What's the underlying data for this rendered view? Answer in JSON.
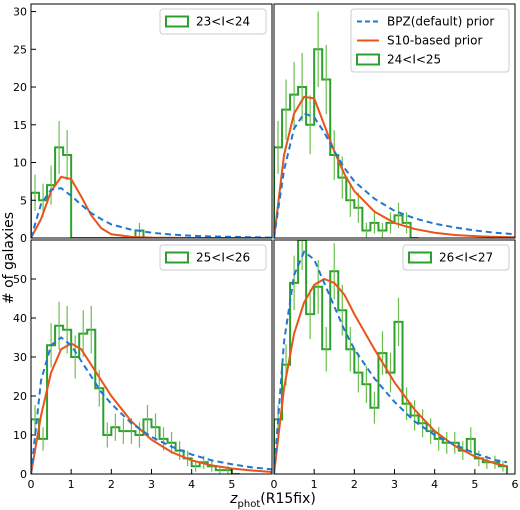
{
  "colors": {
    "bpz": "#1f77d4",
    "s10": "#e8541a",
    "hist": "#2ca02c",
    "axis": "#000000"
  },
  "figure": {
    "ylabel": "# of galaxies",
    "xlabel_main": "z",
    "xlabel_sub": "phot",
    "xlabel_suffix": "(R15fix)"
  },
  "chart_data": [
    {
      "type": "line",
      "panel": "top-left",
      "xlim": [
        0,
        6
      ],
      "ylim": [
        0,
        31
      ],
      "xticks": [],
      "yticks": [
        0,
        5,
        10,
        15,
        20,
        25,
        30
      ],
      "legend_placement": "top-right",
      "legend": [
        {
          "key": "hist",
          "label": "23<I<24"
        }
      ],
      "hist": {
        "x": [
          0.1,
          0.3,
          0.5,
          0.7,
          0.9,
          1.1,
          1.3,
          1.5,
          1.7,
          1.9,
          2.1,
          2.3,
          2.5,
          2.7,
          2.9
        ],
        "values": [
          6,
          5,
          7,
          12,
          11,
          0,
          0,
          0,
          0,
          0,
          0,
          0,
          0,
          1,
          0
        ],
        "errors": [
          2.4,
          2.2,
          2.6,
          3.5,
          3.3,
          0,
          0,
          0,
          0,
          0,
          0,
          0,
          0,
          1,
          0
        ]
      },
      "bpz": {
        "x": [
          0,
          0.25,
          0.5,
          0.75,
          1.0,
          1.25,
          1.5,
          1.75,
          2.0,
          2.5,
          3.0,
          3.5,
          4.0,
          4.5,
          5.0,
          5.5,
          6.0
        ],
        "values": [
          0,
          4.5,
          6.4,
          6.6,
          5.6,
          4.4,
          3.3,
          2.5,
          1.8,
          1.1,
          0.7,
          0.45,
          0.3,
          0.2,
          0.15,
          0.1,
          0.05
        ]
      },
      "s10": {
        "x": [
          0,
          0.25,
          0.5,
          0.75,
          1.0,
          1.25,
          1.5,
          1.75,
          2.0,
          2.5,
          3.0,
          4.0,
          5.0,
          6.0
        ],
        "values": [
          0,
          2.5,
          6.2,
          8.1,
          7.8,
          5.5,
          3.0,
          1.3,
          0.5,
          0.15,
          0.05,
          0,
          0,
          0
        ]
      }
    },
    {
      "type": "line",
      "panel": "top-right",
      "xlim": [
        0,
        6
      ],
      "ylim": [
        0,
        31
      ],
      "xticks": [],
      "yticks": [],
      "legend_placement": "top-right",
      "legend": [
        {
          "key": "bpz",
          "label": "BPZ(default) prior"
        },
        {
          "key": "s10",
          "label": "S10-based prior"
        },
        {
          "key": "hist",
          "label": "24<I<25"
        }
      ],
      "hist": {
        "x": [
          0.1,
          0.3,
          0.5,
          0.7,
          0.9,
          1.1,
          1.3,
          1.5,
          1.7,
          1.9,
          2.1,
          2.3,
          2.5,
          2.7,
          2.9,
          3.1,
          3.3,
          3.5
        ],
        "values": [
          12,
          17,
          19,
          20,
          15,
          25,
          21,
          11,
          8,
          5,
          4,
          1,
          2,
          1,
          2,
          3,
          2,
          0
        ],
        "errors": [
          3.5,
          4,
          4.3,
          4.5,
          3.9,
          5,
          4.6,
          3.3,
          2.8,
          2.2,
          2,
          1,
          1.4,
          1,
          1.4,
          1.7,
          1.4,
          0
        ]
      },
      "bpz": {
        "x": [
          0,
          0.25,
          0.5,
          0.75,
          1.0,
          1.25,
          1.5,
          1.75,
          2.0,
          2.5,
          3.0,
          3.5,
          4.0,
          4.5,
          5.0,
          5.5,
          6.0
        ],
        "values": [
          0,
          9,
          14.5,
          16.5,
          16,
          14,
          11.5,
          9.3,
          7.5,
          5.2,
          3.6,
          2.6,
          1.9,
          1.4,
          1.0,
          0.7,
          0.5
        ]
      },
      "s10": {
        "x": [
          0,
          0.25,
          0.5,
          0.75,
          1.0,
          1.25,
          1.5,
          1.75,
          2.0,
          2.5,
          3.0,
          3.5,
          4.0,
          4.5,
          5.0,
          5.5,
          6.0
        ],
        "values": [
          0,
          11,
          16.5,
          18.7,
          18.5,
          15,
          11.5,
          8.5,
          6.2,
          3.5,
          2.0,
          1.2,
          0.7,
          0.4,
          0.25,
          0.15,
          0.1
        ]
      }
    },
    {
      "type": "line",
      "panel": "bottom-left",
      "xlim": [
        0,
        6
      ],
      "ylim": [
        0,
        60
      ],
      "xticks": [
        0,
        1,
        2,
        3,
        4,
        5
      ],
      "yticks": [
        0,
        10,
        20,
        30,
        40,
        50
      ],
      "legend_placement": "top-right",
      "legend": [
        {
          "key": "hist",
          "label": "25<I<26"
        }
      ],
      "hist": {
        "x": [
          0.1,
          0.3,
          0.5,
          0.7,
          0.9,
          1.1,
          1.3,
          1.5,
          1.7,
          1.9,
          2.1,
          2.3,
          2.5,
          2.7,
          2.9,
          3.1,
          3.3,
          3.5,
          3.7,
          3.9,
          4.1,
          4.3,
          4.5,
          4.7,
          4.9,
          5.1
        ],
        "values": [
          14,
          9,
          33,
          38,
          37,
          30,
          36,
          37,
          22,
          10,
          12,
          11,
          11,
          10,
          14,
          12,
          9,
          8,
          6,
          4,
          2,
          3,
          2,
          1,
          1,
          0
        ],
        "errors": [
          3.7,
          3,
          5.7,
          6.2,
          6.1,
          5.5,
          6,
          6.1,
          4.7,
          3.2,
          3.5,
          3.3,
          3.3,
          3.2,
          3.7,
          3.5,
          3,
          2.8,
          2.4,
          2,
          1.4,
          1.7,
          1.4,
          1,
          1,
          0
        ]
      },
      "bpz": {
        "x": [
          0,
          0.25,
          0.5,
          0.75,
          1.0,
          1.25,
          1.5,
          1.75,
          2.0,
          2.5,
          3.0,
          3.5,
          4.0,
          4.5,
          5.0,
          5.5,
          6.0
        ],
        "values": [
          0,
          24,
          33,
          35,
          33,
          29,
          25,
          21,
          18,
          13,
          9.5,
          7,
          5,
          3.5,
          2.5,
          1.7,
          1.2
        ]
      },
      "s10": {
        "x": [
          0,
          0.25,
          0.5,
          0.75,
          1.0,
          1.25,
          1.5,
          1.75,
          2.0,
          2.5,
          3.0,
          3.5,
          4.0,
          4.5,
          5.0,
          5.5,
          6.0
        ],
        "values": [
          0,
          15,
          26,
          32,
          33.5,
          32,
          28,
          24,
          20,
          13.5,
          8.8,
          5.6,
          3.5,
          2.2,
          1.4,
          0.9,
          0.5
        ]
      }
    },
    {
      "type": "line",
      "panel": "bottom-right",
      "xlim": [
        0,
        6
      ],
      "ylim": [
        0,
        60
      ],
      "xticks": [
        0,
        1,
        2,
        3,
        4,
        5,
        6
      ],
      "yticks": [],
      "legend_placement": "top-right",
      "legend": [
        {
          "key": "hist",
          "label": "26<I<27"
        }
      ],
      "hist": {
        "x": [
          0.1,
          0.3,
          0.5,
          0.7,
          0.9,
          1.1,
          1.3,
          1.5,
          1.7,
          1.9,
          2.1,
          2.3,
          2.5,
          2.7,
          2.9,
          3.1,
          3.3,
          3.5,
          3.7,
          3.9,
          4.1,
          4.3,
          4.5,
          4.7,
          4.9,
          5.1,
          5.3,
          5.5,
          5.7
        ],
        "values": [
          14,
          28,
          49,
          60,
          41,
          48,
          32,
          52,
          42,
          32,
          26,
          23,
          17,
          31,
          26,
          39,
          18,
          15,
          13,
          11,
          9,
          8,
          8,
          6,
          9,
          4,
          3,
          3,
          2
        ],
        "errors": [
          3.7,
          5.3,
          7,
          7.7,
          6.4,
          6.9,
          5.7,
          7.2,
          6.5,
          5.7,
          5.1,
          4.8,
          4.1,
          5.6,
          5.1,
          6.2,
          4.2,
          3.9,
          3.6,
          3.3,
          3,
          2.8,
          2.8,
          2.4,
          3,
          2,
          1.7,
          1.7,
          1.4
        ]
      },
      "bpz": {
        "x": [
          0,
          0.25,
          0.5,
          0.75,
          1.0,
          1.25,
          1.5,
          1.75,
          2.0,
          2.5,
          3.0,
          3.5,
          4.0,
          4.5,
          5.0,
          5.5,
          5.8
        ],
        "values": [
          0,
          34,
          51,
          57,
          55,
          49,
          43,
          37,
          32,
          24.5,
          18.5,
          13.5,
          10,
          7.5,
          5.3,
          3.6,
          3
        ]
      },
      "s10": {
        "x": [
          0,
          0.25,
          0.5,
          0.75,
          1.0,
          1.25,
          1.5,
          1.75,
          2.0,
          2.5,
          3.0,
          3.5,
          4.0,
          4.5,
          5.0,
          5.5,
          5.8
        ],
        "values": [
          0,
          22,
          36,
          44,
          48.5,
          50,
          49,
          46,
          41,
          32,
          23.5,
          16.5,
          11,
          7.2,
          4.5,
          2.7,
          2
        ]
      }
    }
  ]
}
